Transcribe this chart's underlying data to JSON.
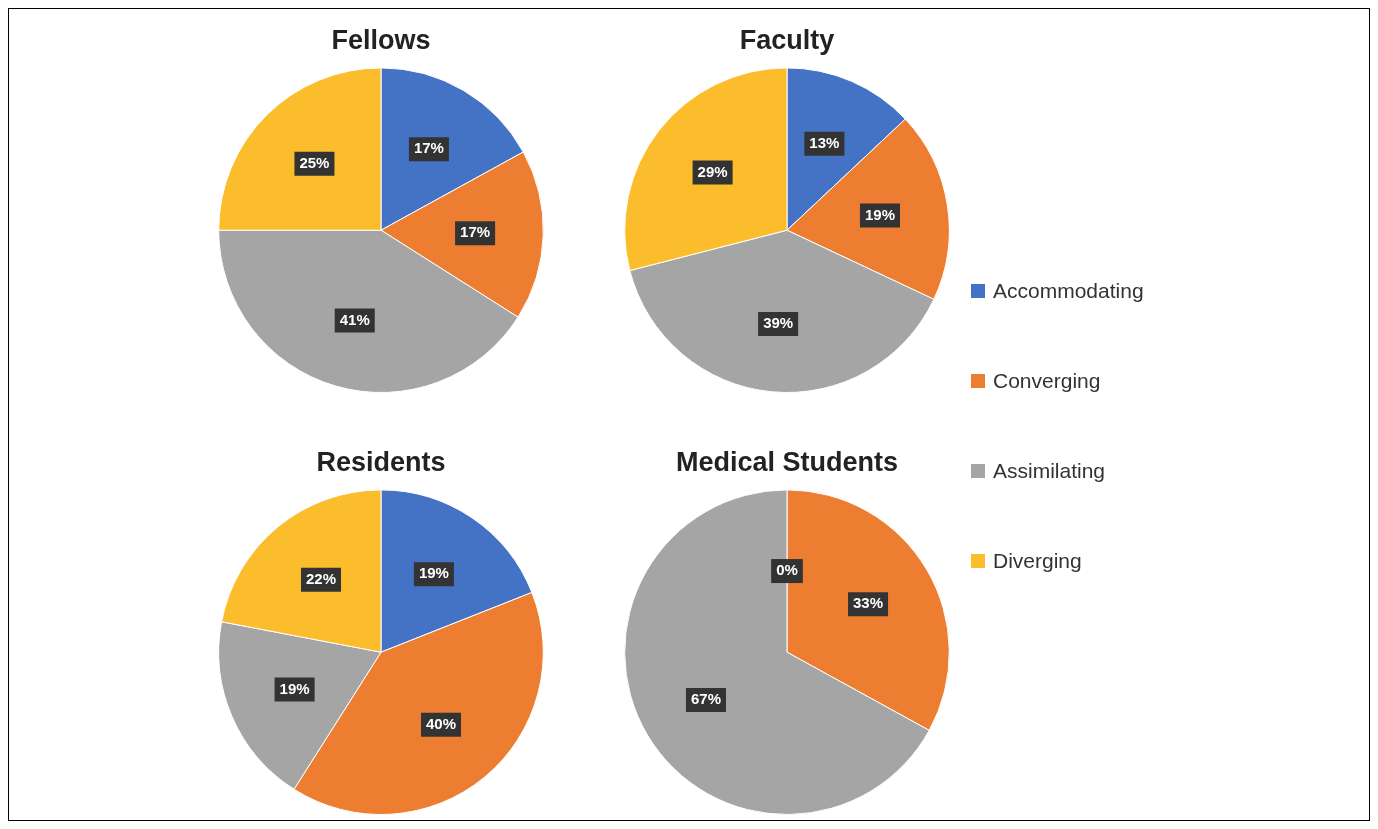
{
  "chart_data": [
    {
      "type": "pie",
      "title": "Fellows",
      "categories": [
        "Accommodating",
        "Converging",
        "Assimilating",
        "Diverging"
      ],
      "values": [
        17,
        17,
        41,
        25
      ],
      "colors": [
        "#4472c4",
        "#ed7d31",
        "#a5a5a5",
        "#fbbd2c"
      ],
      "value_labels": [
        "17%",
        "17%",
        "41%",
        "25%"
      ],
      "legend": "right"
    },
    {
      "type": "pie",
      "title": "Faculty",
      "categories": [
        null,
        null,
        null,
        null
      ],
      "values": [
        13,
        19,
        39,
        29
      ],
      "colors": [
        "#4472c4",
        "#ed7d31",
        "#a5a5a5",
        "#fbbd2c"
      ],
      "value_labels": [
        "13%",
        "19%",
        "39%",
        "29%"
      ]
    },
    {
      "type": "pie",
      "title": "Residents",
      "categories": [
        null,
        null,
        null,
        null
      ],
      "values": [
        19,
        40,
        19,
        22
      ],
      "colors": [
        "#4472c4",
        "#ed7d31",
        "#a5a5a5",
        "#fbbd2c"
      ],
      "value_labels": [
        "19%",
        "40%",
        "19%",
        "22%"
      ]
    },
    {
      "type": "pie",
      "title": "Medical Students",
      "categories": [
        null,
        null,
        null,
        null
      ],
      "values": [
        0,
        33,
        67,
        0
      ],
      "colors": [
        "#4472c4",
        "#ed7d31",
        "#a5a5a5",
        "#fbbd2c"
      ],
      "value_labels": [
        "0%",
        "33%",
        "67%",
        null
      ]
    }
  ]
}
